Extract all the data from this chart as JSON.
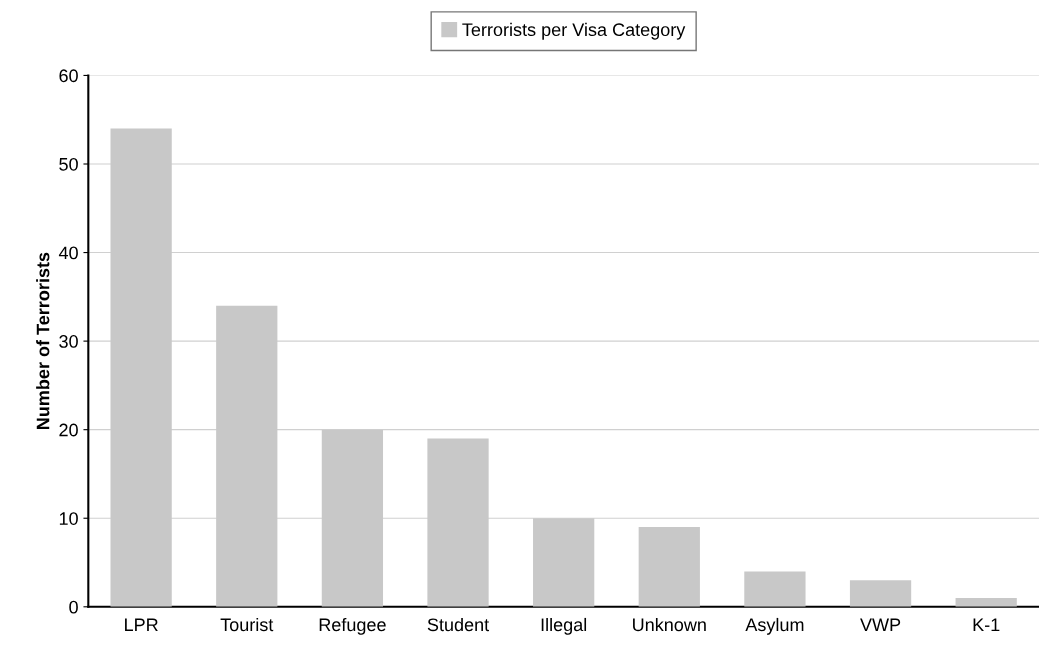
{
  "chart_data": {
    "type": "bar",
    "ylabel": "Number of Terrorists",
    "categories": [
      "LPR",
      "Tourist",
      "Refugee",
      "Student",
      "Illegal",
      "Unknown",
      "Asylum",
      "VWP",
      "K-1"
    ],
    "series": [
      {
        "name": "Terrorists per Visa Category",
        "color": "#c8c8c8",
        "values": [
          54,
          34,
          20,
          19,
          10,
          9,
          4,
          3,
          1
        ]
      }
    ],
    "ylim": [
      0,
      60
    ],
    "yticks": [
      0,
      10,
      20,
      30,
      40,
      50,
      60
    ],
    "grid": "y",
    "legend": "top"
  }
}
